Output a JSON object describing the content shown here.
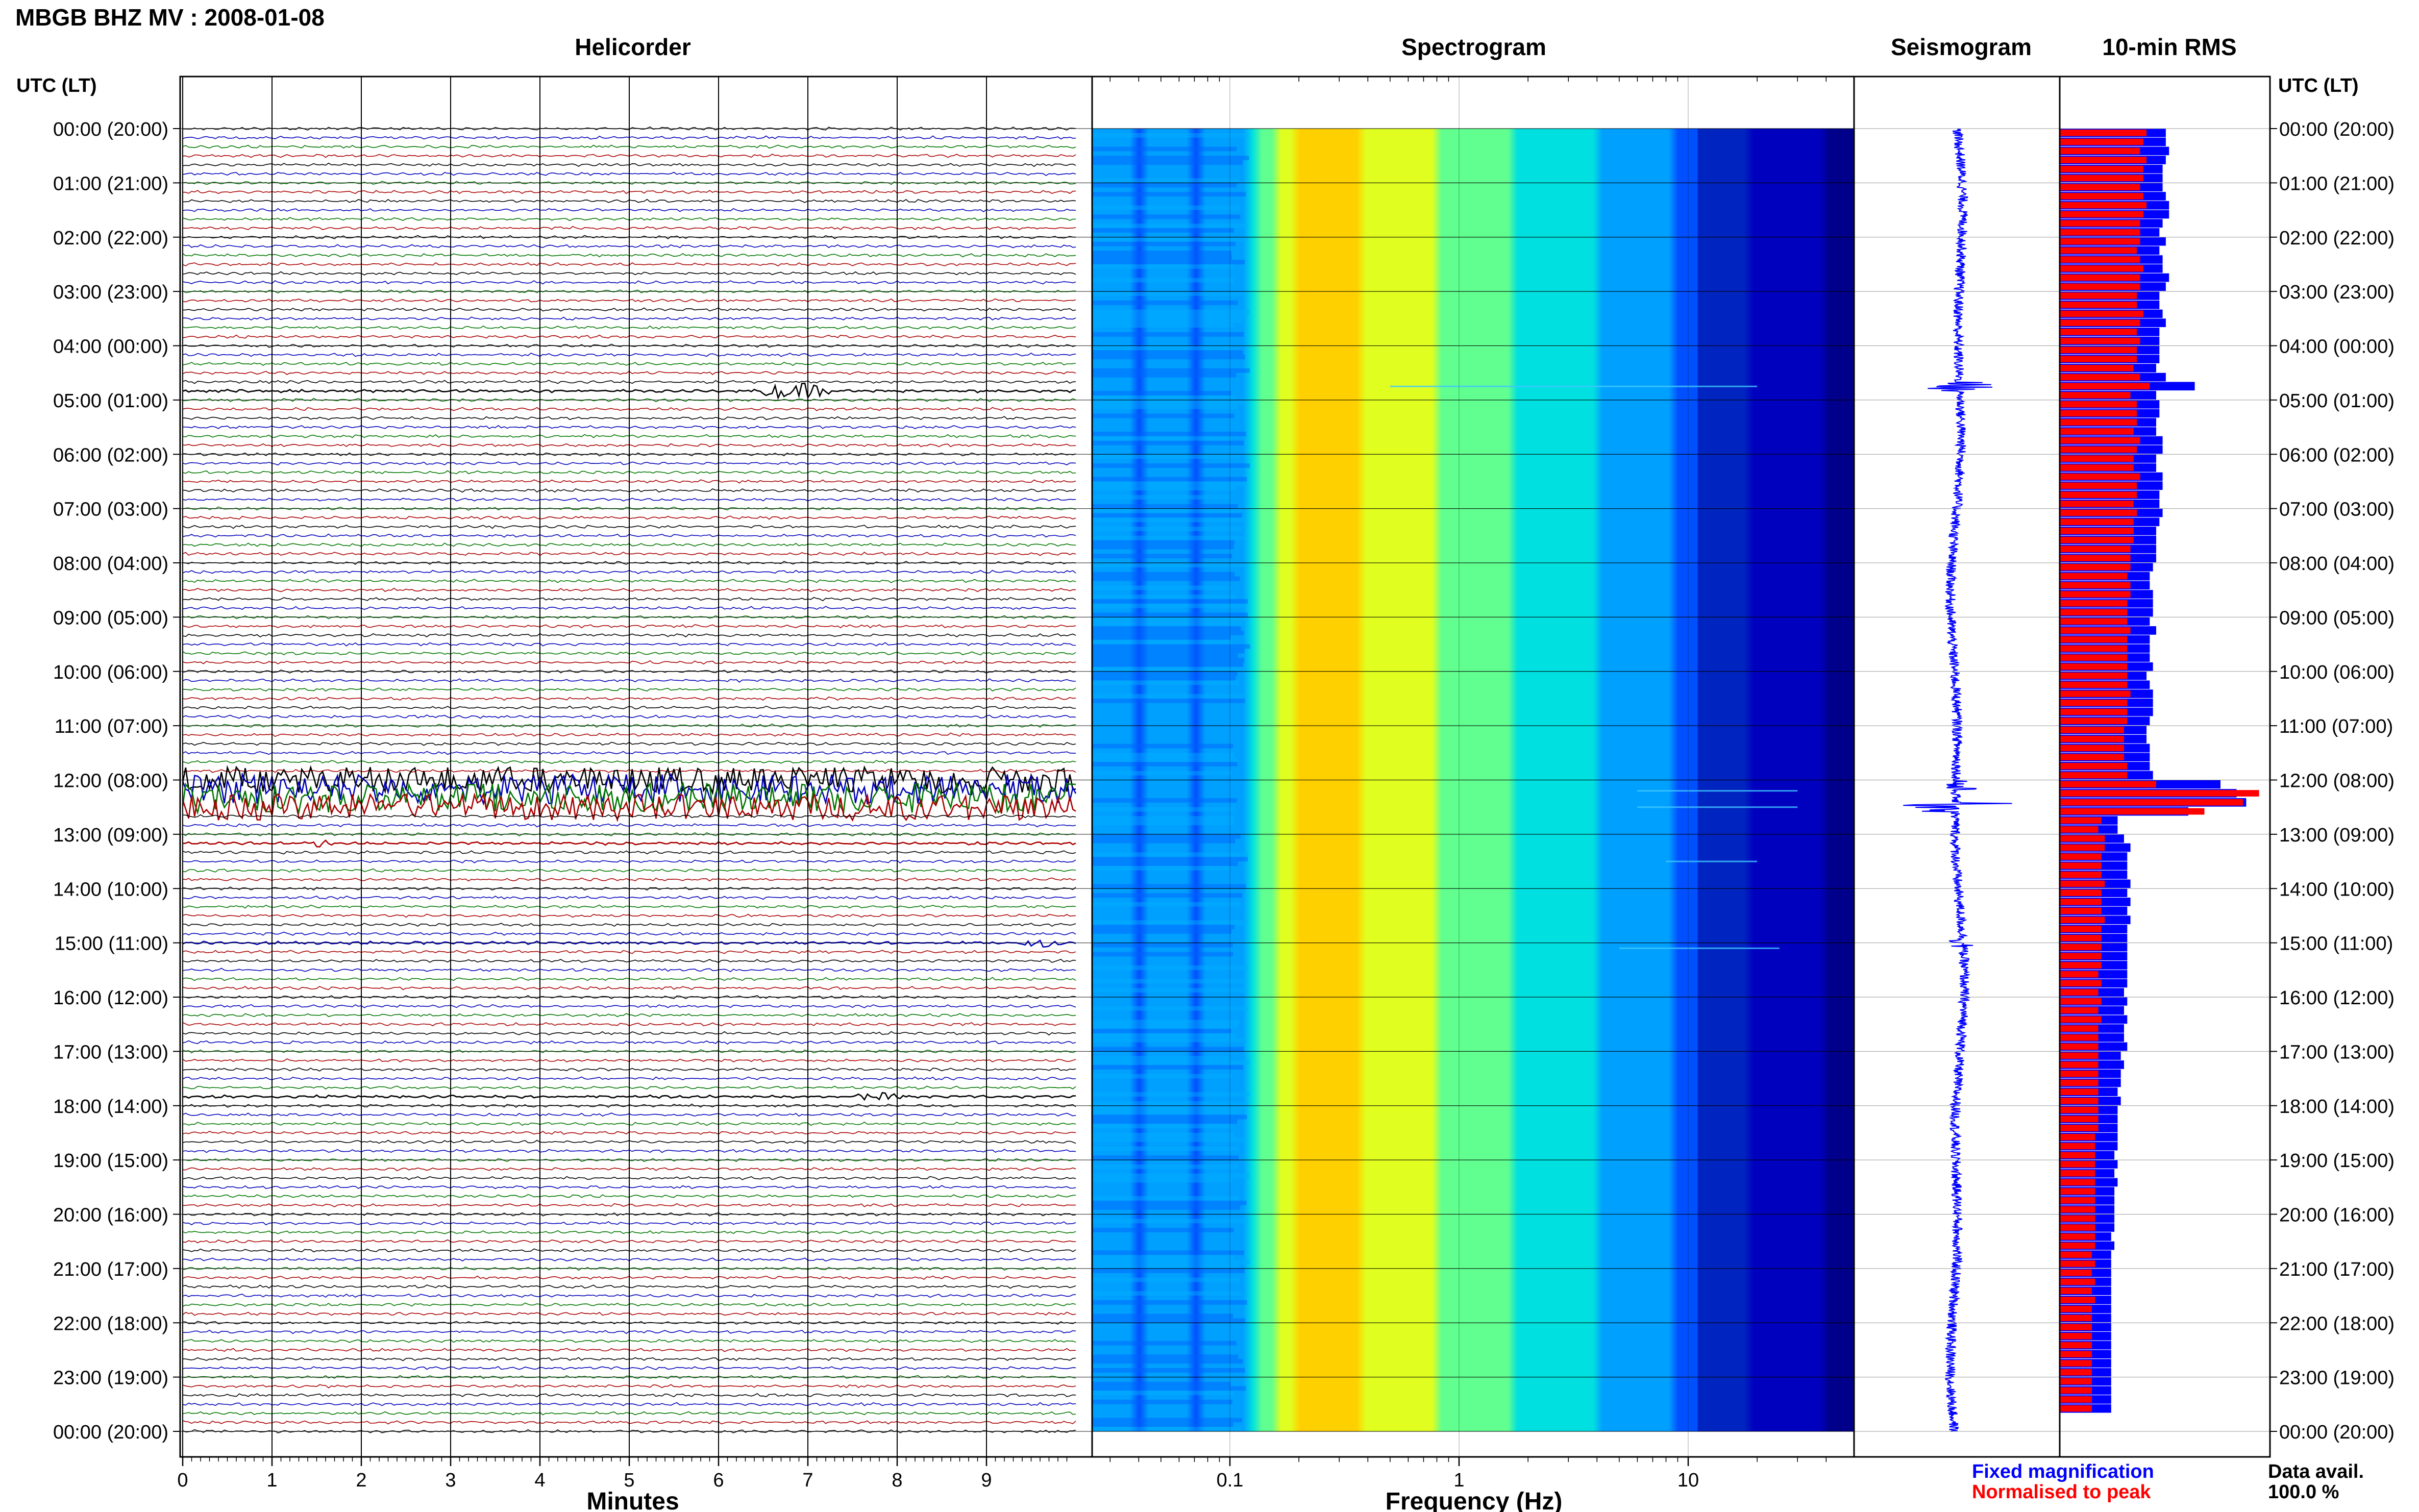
{
  "page": {
    "title": "MBGB BHZ MV : 2008-01-08",
    "time_header_left": "UTC (LT)",
    "time_header_right": "UTC (LT)"
  },
  "hour_labels": [
    "00:00 (20:00)",
    "01:00 (21:00)",
    "02:00 (22:00)",
    "03:00 (23:00)",
    "04:00 (00:00)",
    "05:00 (01:00)",
    "06:00 (02:00)",
    "07:00 (03:00)",
    "08:00 (04:00)",
    "09:00 (05:00)",
    "10:00 (06:00)",
    "11:00 (07:00)",
    "12:00 (08:00)",
    "13:00 (09:00)",
    "14:00 (10:00)",
    "15:00 (11:00)",
    "16:00 (12:00)",
    "17:00 (13:00)",
    "18:00 (14:00)",
    "19:00 (15:00)",
    "20:00 (16:00)",
    "21:00 (17:00)",
    "22:00 (18:00)",
    "23:00 (19:00)",
    "00:00 (20:00)"
  ],
  "legend": {
    "fixed": "Fixed magnification",
    "normalised": "Normalised to peak",
    "fixed_color": "#0000ff",
    "normalised_color": "#ff0000"
  },
  "data_availability": {
    "label": "Data avail.",
    "value": "100.0 %"
  },
  "chart_data": [
    {
      "type": "line",
      "panel": "helicorder",
      "title": "Helicorder",
      "xlabel": "Minutes",
      "xlim": [
        0,
        10
      ],
      "x_ticks": [
        0,
        1,
        2,
        3,
        4,
        5,
        6,
        7,
        8,
        9
      ],
      "traces_per_hour": 6,
      "trace_colors": [
        "#000000",
        "#0000bb",
        "#007700",
        "#aa0000"
      ],
      "events": [
        {
          "hour": 4,
          "trace": 5,
          "minute_start": 6.3,
          "minute_end": 7.4,
          "amplitude": 5,
          "color": "#000000"
        },
        {
          "hour": 12,
          "trace": 0,
          "minute_start": 0,
          "minute_end": 10,
          "amplitude": 8,
          "color": "#000000"
        },
        {
          "hour": 12,
          "trace": 1,
          "minute_start": 0,
          "minute_end": 10,
          "amplitude": 9,
          "color": "#0000bb"
        },
        {
          "hour": 12,
          "trace": 2,
          "minute_start": 0,
          "minute_end": 10,
          "amplitude": 9,
          "color": "#007700"
        },
        {
          "hour": 12,
          "trace": 3,
          "minute_start": 0,
          "minute_end": 10,
          "amplitude": 8,
          "color": "#aa0000"
        },
        {
          "hour": 13,
          "trace": 1,
          "minute_start": 1.3,
          "minute_end": 1.8,
          "amplitude": 2.5,
          "color": "#aa0000"
        },
        {
          "hour": 15,
          "trace": 0,
          "minute_start": 9.3,
          "minute_end": 9.9,
          "amplitude": 3,
          "color": "#0000bb"
        },
        {
          "hour": 17,
          "trace": 5,
          "minute_start": 7.4,
          "minute_end": 8.2,
          "amplitude": 2.5,
          "color": "#000000"
        }
      ]
    },
    {
      "type": "heatmap",
      "panel": "spectrogram",
      "title": "Spectrogram",
      "xlabel": "Frequency (Hz)",
      "x_scale": "log",
      "xlim": [
        0.025,
        50
      ],
      "x_tick_labels": [
        "0.1",
        "1",
        "10"
      ],
      "x_tick_values": [
        0.1,
        1,
        10
      ],
      "colormap": [
        "#00008b",
        "#0000ff",
        "#0050ff",
        "#00a0ff",
        "#00e0e0",
        "#60ff90",
        "#e0ff20",
        "#ffd000"
      ],
      "peak_frequency_hz": 0.25
    },
    {
      "type": "line",
      "panel": "seismogram",
      "title": "Seismogram",
      "color": "#0000ff",
      "events": [
        {
          "hour": 4.75,
          "amplitude": 5
        },
        {
          "hour": 12.1,
          "amplitude": 3
        },
        {
          "hour": 12.5,
          "amplitude": 8
        },
        {
          "hour": 15.0,
          "amplitude": 2
        }
      ]
    },
    {
      "type": "bar",
      "panel": "rms",
      "title": "10-min RMS",
      "orientation": "horizontal",
      "bins_per_hour": 6,
      "fixed_magnification": [
        33,
        33,
        34,
        33,
        32,
        32,
        32,
        33,
        34,
        34,
        32,
        31,
        33,
        31,
        32,
        32,
        34,
        33,
        31,
        31,
        32,
        33,
        31,
        31,
        31,
        31,
        30,
        33,
        42,
        30,
        31,
        31,
        30,
        30,
        32,
        32,
        30,
        30,
        32,
        32,
        31,
        31,
        32,
        31,
        30,
        30,
        30,
        30,
        29,
        28,
        28,
        29,
        29,
        29,
        28,
        30,
        28,
        28,
        28,
        29,
        27,
        28,
        29,
        29,
        29,
        28,
        27,
        27,
        28,
        28,
        28,
        29,
        50,
        55,
        58,
        40,
        18,
        18,
        20,
        22,
        21,
        21,
        21,
        22,
        21,
        22,
        21,
        22,
        21,
        21,
        21,
        21,
        21,
        21,
        21,
        20,
        21,
        20,
        21,
        20,
        20,
        21,
        19,
        20,
        19,
        19,
        18,
        19,
        18,
        18,
        18,
        18,
        18,
        17,
        18,
        17,
        18,
        17,
        17,
        17,
        17,
        17,
        16,
        17,
        16,
        16,
        16,
        16,
        16,
        16,
        16,
        16,
        16,
        16,
        16,
        16,
        16,
        16,
        16,
        16,
        16,
        16
      ],
      "normalised_to_peak": [
        27,
        26,
        25,
        27,
        26,
        26,
        25,
        26,
        27,
        26,
        25,
        25,
        25,
        24,
        25,
        26,
        25,
        25,
        24,
        24,
        26,
        25,
        24,
        25,
        24,
        24,
        23,
        25,
        28,
        22,
        24,
        24,
        24,
        23,
        25,
        24,
        23,
        23,
        25,
        24,
        24,
        23,
        24,
        23,
        23,
        23,
        22,
        22,
        22,
        21,
        22,
        22,
        21,
        21,
        21,
        22,
        21,
        21,
        21,
        21,
        21,
        21,
        22,
        21,
        21,
        21,
        20,
        20,
        20,
        20,
        21,
        21,
        30,
        62,
        57,
        45,
        13,
        12,
        14,
        14,
        13,
        13,
        13,
        14,
        13,
        13,
        13,
        14,
        13,
        13,
        13,
        13,
        13,
        12,
        13,
        12,
        13,
        12,
        13,
        12,
        12,
        12,
        12,
        12,
        12,
        12,
        12,
        12,
        12,
        12,
        12,
        11,
        11,
        11,
        11,
        11,
        11,
        11,
        11,
        11,
        11,
        11,
        11,
        11,
        10,
        11,
        10,
        11,
        10,
        11,
        10,
        10,
        10,
        10,
        10,
        10,
        10,
        10,
        10,
        10,
        10,
        10
      ]
    }
  ]
}
